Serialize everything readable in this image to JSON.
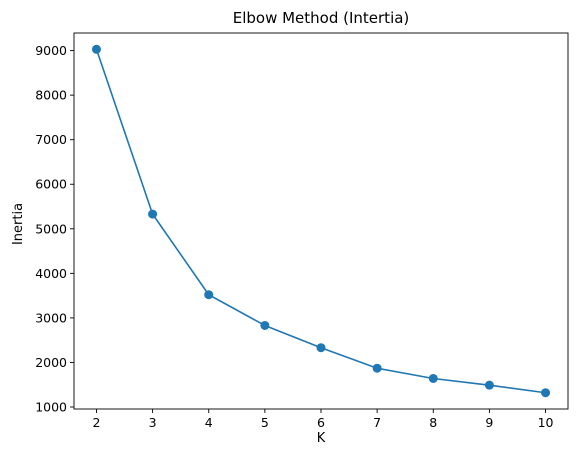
{
  "chart_data": {
    "type": "line",
    "title": "Elbow Method (Intertia)",
    "xlabel": "K",
    "ylabel": "Inertia",
    "x": [
      2,
      3,
      4,
      5,
      6,
      7,
      8,
      9,
      10
    ],
    "series": [
      {
        "values": [
          9030,
          5330,
          3520,
          2830,
          2330,
          1870,
          1640,
          1490,
          1320
        ],
        "color": "#1f77b4",
        "marker": "circle"
      }
    ],
    "xlim": [
      1.6,
      10.4
    ],
    "ylim": [
      955,
      9395
    ],
    "xticks": [
      2,
      3,
      4,
      5,
      6,
      7,
      8,
      9,
      10
    ],
    "yticks": [
      1000,
      2000,
      3000,
      4000,
      5000,
      6000,
      7000,
      8000,
      9000
    ],
    "grid": false,
    "legend": "none"
  }
}
